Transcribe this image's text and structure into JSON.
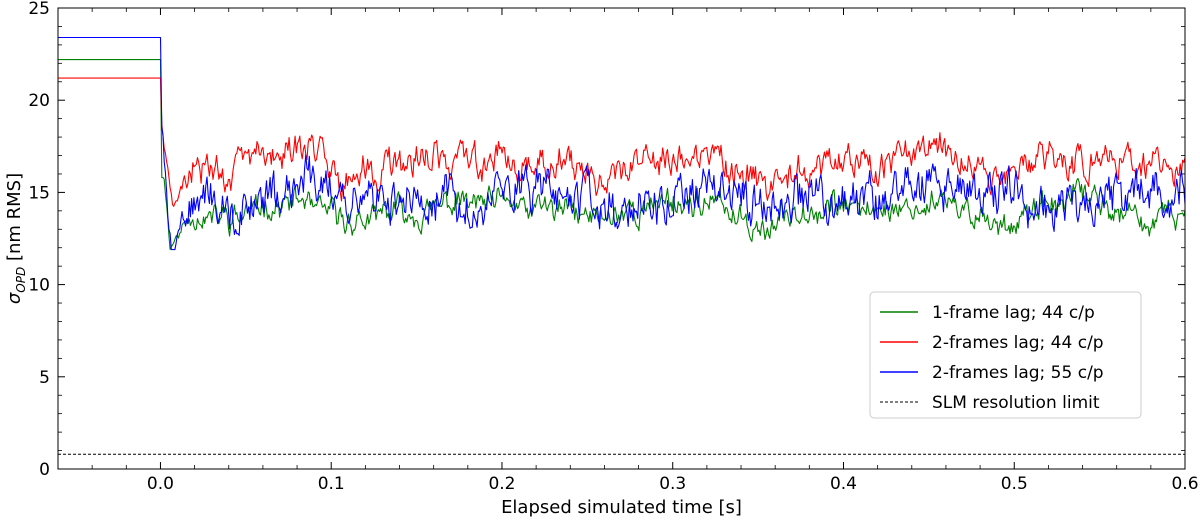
{
  "chart_data": {
    "type": "line",
    "xlabel": "Elapsed simulated time [s]",
    "ylabel_main": "σ",
    "ylabel_sub": "OPD",
    "ylabel_rest": " [nm RMS]",
    "xlim": [
      -0.06,
      0.6
    ],
    "ylim": [
      0,
      25
    ],
    "xticks": [
      0.0,
      0.1,
      0.2,
      0.3,
      0.4,
      0.5,
      0.6
    ],
    "xtick_labels": [
      "0.0",
      "0.1",
      "0.2",
      "0.3",
      "0.4",
      "0.5",
      "0.6"
    ],
    "yticks": [
      0,
      5,
      10,
      15,
      20,
      25
    ],
    "ytick_labels": [
      "0",
      "5",
      "10",
      "15",
      "20",
      "25"
    ],
    "legend_position": "lower-right",
    "series": [
      {
        "name": "1-frame lag; 44 c/p",
        "color": "#008000",
        "initial_value": 22.2,
        "min_value": 12.0,
        "steady_mean": 14.0,
        "steady_range": [
          12.4,
          15.6
        ]
      },
      {
        "name": "2-frames lag; 44 c/p",
        "color": "#ff0000",
        "initial_value": 21.2,
        "min_value": 14.3,
        "steady_mean": 16.6,
        "steady_range": [
          14.5,
          18.5
        ]
      },
      {
        "name": "2-frames lag; 55 c/p",
        "color": "#0000ff",
        "initial_value": 23.4,
        "min_value": 11.5,
        "steady_mean": 14.8,
        "steady_range": [
          12.5,
          18.3
        ]
      },
      {
        "name": "SLM resolution limit",
        "color": "#000000",
        "dashed": true,
        "constant_value": 0.8
      }
    ]
  }
}
